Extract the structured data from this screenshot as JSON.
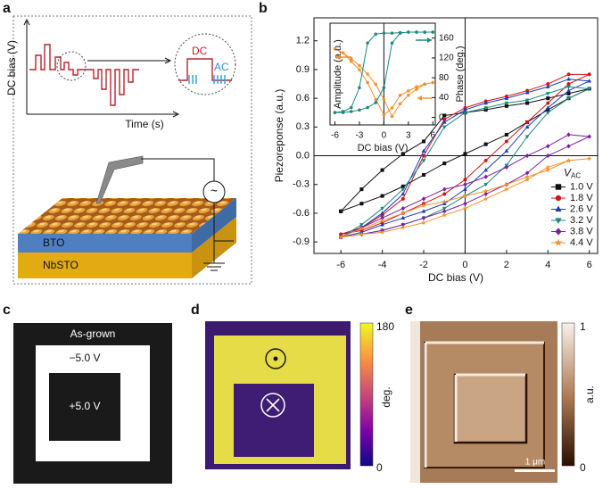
{
  "panel_labels": [
    "a",
    "b",
    "c",
    "d",
    "e"
  ],
  "panel_a": {
    "y_label": "DC bias (V)",
    "x_label": "Time (s)",
    "dc_label": "DC",
    "ac_label": "AC",
    "layer_top": "BTO",
    "layer_bottom": "NbSTO",
    "source_symbol": "~"
  },
  "chart_data": [
    {
      "type": "line",
      "xlabel": "DC bias (V)",
      "ylabel": "Piezoreponse (a.u.)",
      "xlim": [
        -7.3,
        6.4
      ],
      "ylim": [
        -1.02,
        1.44
      ],
      "xticks": [
        -6,
        -4,
        -2,
        0,
        2,
        4,
        6
      ],
      "yticks": [
        -0.9,
        -0.6,
        -0.3,
        {
          "value": 0,
          "label": "0.0"
        },
        0.3,
        0.6,
        0.9,
        1.2
      ],
      "origin_lines": true,
      "legend": "lower right",
      "legend_title": {
        "symbol": "V",
        "subscript": "AC"
      },
      "x": [
        -6,
        -5,
        -4,
        -3,
        -2,
        -1,
        0,
        1,
        2,
        3,
        4,
        5,
        6,
        5,
        4,
        3,
        2,
        1,
        0,
        -1,
        -2,
        -3,
        -4,
        -5,
        -6
      ],
      "series": [
        {
          "name": "1.0 V",
          "color": "#111111",
          "marker": "square",
          "values": [
            -0.58,
            -0.5,
            -0.42,
            -0.32,
            -0.2,
            -0.08,
            0.02,
            0.12,
            0.22,
            0.35,
            0.48,
            0.6,
            0.7,
            0.65,
            0.6,
            0.55,
            0.52,
            0.48,
            0.45,
            0.42,
            0.15,
            0.02,
            -0.15,
            -0.35,
            -0.58
          ]
        },
        {
          "name": "1.8 V",
          "color": "#d01515",
          "marker": "circle",
          "values": [
            -0.82,
            -0.78,
            -0.7,
            -0.6,
            -0.5,
            -0.4,
            -0.25,
            -0.05,
            0.15,
            0.35,
            0.55,
            0.75,
            0.85,
            0.85,
            0.75,
            0.68,
            0.62,
            0.57,
            0.5,
            0.38,
            0.0,
            -0.45,
            -0.62,
            -0.75,
            -0.82
          ]
        },
        {
          "name": "2.6 V",
          "color": "#1d3bbd",
          "marker": "triangle-up",
          "values": [
            -0.85,
            -0.8,
            -0.72,
            -0.65,
            -0.58,
            -0.5,
            -0.35,
            -0.15,
            0.05,
            0.3,
            0.5,
            0.68,
            0.78,
            0.8,
            0.72,
            0.66,
            0.6,
            0.55,
            0.48,
            0.35,
            0.05,
            -0.4,
            -0.6,
            -0.75,
            -0.85
          ]
        },
        {
          "name": "3.2 V",
          "color": "#1a8a80",
          "marker": "triangle-down",
          "values": [
            -0.85,
            -0.82,
            -0.78,
            -0.72,
            -0.65,
            -0.55,
            -0.42,
            -0.3,
            -0.1,
            0.2,
            0.45,
            0.6,
            0.7,
            0.72,
            0.65,
            0.58,
            0.55,
            0.5,
            0.45,
            0.3,
            -0.05,
            -0.35,
            -0.55,
            -0.72,
            -0.85
          ]
        },
        {
          "name": "3.8 V",
          "color": "#7a1fa0",
          "marker": "diamond",
          "values": [
            -0.85,
            -0.82,
            -0.78,
            -0.72,
            -0.65,
            -0.58,
            -0.5,
            -0.4,
            -0.3,
            -0.18,
            0.0,
            0.1,
            0.2,
            0.22,
            0.1,
            0.0,
            -0.12,
            -0.22,
            -0.3,
            -0.35,
            -0.45,
            -0.55,
            -0.65,
            -0.75,
            -0.85
          ]
        },
        {
          "name": "4.4 V",
          "color": "#f0922e",
          "marker": "star",
          "values": [
            -0.85,
            -0.82,
            -0.8,
            -0.75,
            -0.7,
            -0.62,
            -0.55,
            -0.45,
            -0.35,
            -0.25,
            -0.12,
            -0.05,
            -0.03,
            -0.05,
            -0.15,
            -0.22,
            -0.3,
            -0.37,
            -0.42,
            -0.48,
            -0.52,
            -0.6,
            -0.68,
            -0.76,
            -0.85
          ]
        }
      ]
    },
    {
      "type": "line",
      "xlabel": "DC bias (V)",
      "ylabel": "Amplitude (a.u.)",
      "y2label": "Phase (deg.)",
      "xlim": [
        -6.6,
        6.3
      ],
      "ylim": [
        0,
        1.2
      ],
      "y2lim": [
        -15,
        190
      ],
      "xticks": [
        -6,
        -3,
        0,
        3,
        6
      ],
      "y2ticks": [
        0,
        40,
        80,
        120,
        160
      ],
      "origin_lines": true,
      "x": [
        -6,
        -5,
        -4,
        -3,
        -2,
        -1,
        0,
        1,
        2,
        3,
        4,
        5,
        6,
        5,
        4,
        3,
        2,
        1,
        0,
        -1,
        -2,
        -3,
        -4,
        -5,
        -6
      ],
      "series": [
        {
          "color": "#f0922e",
          "marker": "circle",
          "values": [
            0.9,
            0.85,
            0.78,
            0.7,
            0.6,
            0.48,
            0.3,
            0.1,
            0.25,
            0.35,
            0.42,
            0.48,
            0.5,
            0.48,
            0.45,
            0.4,
            0.35,
            0.2,
            0.12,
            0.3,
            0.5,
            0.65,
            0.75,
            0.85,
            0.9
          ]
        },
        {
          "color": "#1a8a80",
          "marker": "circle",
          "axis": "y2",
          "values": [
            10,
            10,
            12,
            15,
            20,
            30,
            60,
            150,
            170,
            172,
            172,
            172,
            172,
            172,
            172,
            172,
            171,
            170,
            170,
            168,
            150,
            60,
            20,
            12,
            10
          ]
        }
      ]
    }
  ],
  "panel_c": {
    "outer": "As-grown",
    "ring": "−5.0 V",
    "center": "+5.0 V"
  },
  "panel_d": {
    "colorbar_max": 180,
    "colorbar_min": 0,
    "colorbar_label": "deg."
  },
  "panel_e": {
    "colorbar_max": 1,
    "colorbar_min": 0,
    "colorbar_label": "a.u.",
    "scale_bar": "1 μm"
  }
}
